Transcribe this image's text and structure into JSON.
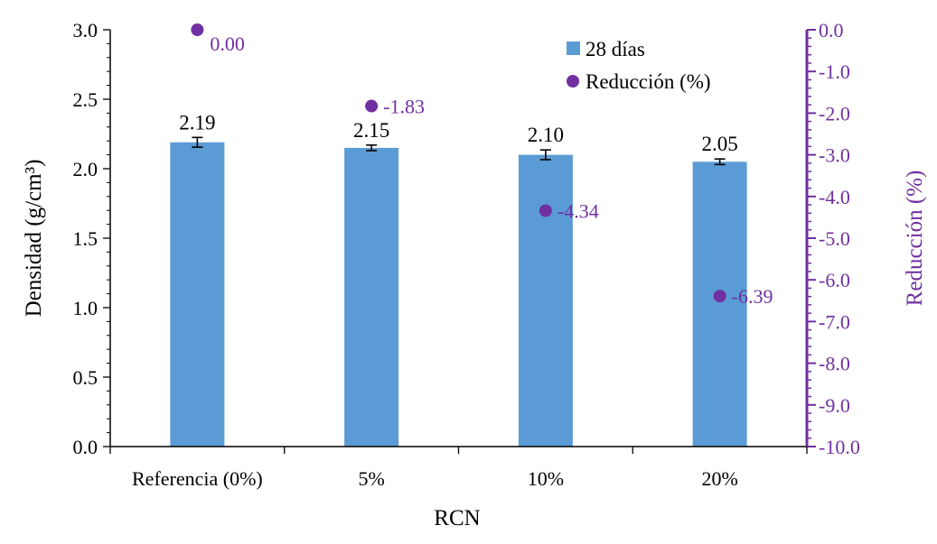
{
  "chart_data": {
    "type": "bar",
    "title": "",
    "categories": [
      "Referencia (0%)",
      "5%",
      "10%",
      "20%"
    ],
    "xlabel": "RCN",
    "ylabel": "Densidad (g/cm³)",
    "ylabel_right": "Reducción (%)",
    "ylim": [
      0,
      3
    ],
    "ylim_right": [
      -10,
      0
    ],
    "yticks": [
      "0.0",
      "0.5",
      "1.0",
      "1.5",
      "2.0",
      "2.5",
      "3.0"
    ],
    "yticks_right": [
      "0.0",
      "-1.0",
      "-2.0",
      "-3.0",
      "-4.0",
      "-5.0",
      "-6.0",
      "-7.0",
      "-8.0",
      "-9.0",
      "-10.0"
    ],
    "legend_position": "top-right",
    "series": [
      {
        "name": "28 días",
        "type": "bar",
        "axis": "left",
        "color": "#5b9bd5",
        "values": [
          2.19,
          2.15,
          2.1,
          2.05
        ],
        "labels": [
          "2.19",
          "2.15",
          "2.10",
          "2.05"
        ],
        "errors": [
          0.035,
          0.02,
          0.035,
          0.02
        ]
      },
      {
        "name": "Reducción (%)",
        "type": "scatter",
        "axis": "right",
        "color": "#7030a0",
        "values": [
          0.0,
          -1.83,
          -4.34,
          -6.39
        ],
        "labels": [
          "0.00",
          "-1.83",
          "-4.34",
          "-6.39"
        ]
      }
    ]
  }
}
